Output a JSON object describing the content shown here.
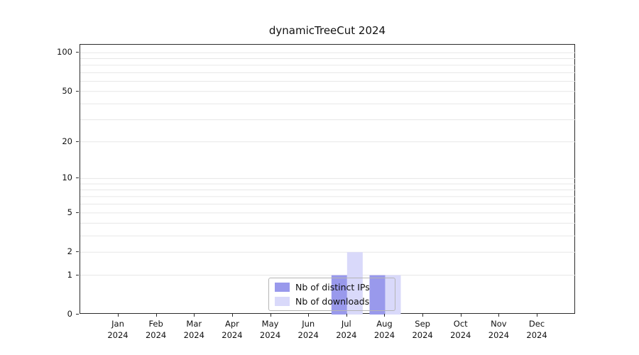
{
  "title": "dynamicTreeCut 2024",
  "legend": {
    "items": [
      {
        "label": "Nb of distinct IPs",
        "color": "#9999ec"
      },
      {
        "label": "Nb of downloads",
        "color": "#d9d9fa"
      }
    ]
  },
  "chart_data": {
    "type": "bar",
    "title": "dynamicTreeCut 2024",
    "categories": [
      "Jan",
      "Feb",
      "Mar",
      "Apr",
      "May",
      "Jun",
      "Jul",
      "Aug",
      "Sep",
      "Oct",
      "Nov",
      "Dec"
    ],
    "xtick_year": "2024",
    "series": [
      {
        "name": "Nb of distinct IPs",
        "color": "#9999ec",
        "values": [
          0,
          0,
          0,
          0,
          0,
          0,
          1,
          1,
          0,
          0,
          0,
          0
        ]
      },
      {
        "name": "Nb of downloads",
        "color": "#d9d9fa",
        "values": [
          0,
          0,
          0,
          0,
          0,
          0,
          2,
          1,
          0,
          0,
          0,
          0
        ]
      }
    ],
    "yscale": "log1p",
    "ylim": [
      0,
      115
    ],
    "yticks": [
      0,
      1,
      2,
      5,
      10,
      20,
      50,
      100
    ],
    "grid_values": [
      1,
      2,
      3,
      4,
      5,
      6,
      7,
      8,
      9,
      10,
      20,
      30,
      40,
      50,
      60,
      70,
      80,
      90,
      100
    ],
    "grid": true,
    "legend_position": "lower center"
  }
}
